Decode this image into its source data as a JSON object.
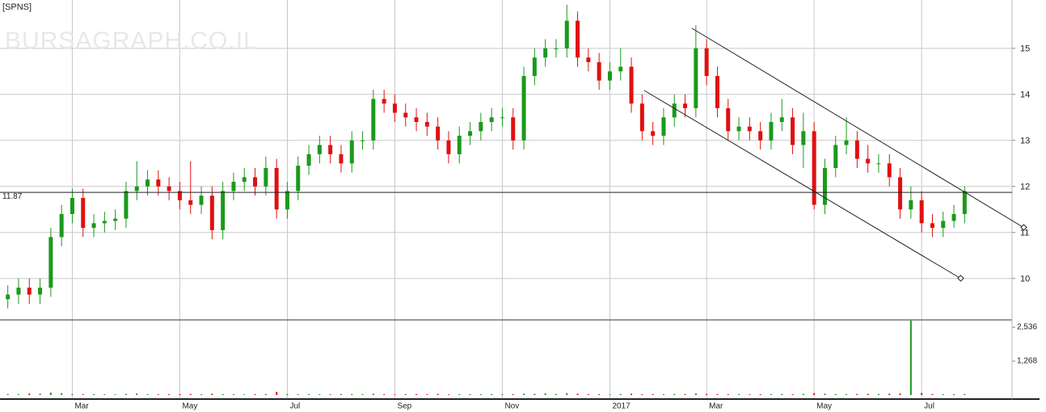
{
  "chart_data": {
    "type": "candlestick",
    "title": "[SPNS]",
    "watermark": "BURSAGRAPH.CO.IL",
    "categories": [
      null,
      null,
      null,
      null,
      null,
      null,
      "Mar",
      null,
      null,
      null,
      null,
      null,
      null,
      null,
      null,
      null,
      "May",
      null,
      null,
      null,
      null,
      null,
      null,
      null,
      null,
      null,
      "Jul",
      null,
      null,
      null,
      null,
      null,
      null,
      null,
      null,
      null,
      "Sep",
      null,
      null,
      null,
      null,
      null,
      null,
      null,
      null,
      null,
      "Nov",
      null,
      null,
      null,
      null,
      null,
      null,
      null,
      null,
      null,
      "2017",
      null,
      null,
      null,
      null,
      null,
      null,
      null,
      null,
      "Mar",
      null,
      null,
      null,
      null,
      null,
      null,
      null,
      null,
      null,
      "May",
      null,
      null,
      null,
      null,
      null,
      null,
      null,
      null,
      null,
      "Jul",
      null,
      null,
      null,
      null
    ],
    "open": [
      9.55,
      9.65,
      9.8,
      9.65,
      9.8,
      10.9,
      11.4,
      11.75,
      11.1,
      11.2,
      11.25,
      11.3,
      11.9,
      12.0,
      12.15,
      12.0,
      11.9,
      11.7,
      11.6,
      11.8,
      11.05,
      11.9,
      12.1,
      12.2,
      12.0,
      12.4,
      11.5,
      11.9,
      12.45,
      12.7,
      12.9,
      12.7,
      12.5,
      13.0,
      13.0,
      13.9,
      13.8,
      13.6,
      13.5,
      13.4,
      13.3,
      13.0,
      12.7,
      13.1,
      13.2,
      13.4,
      13.5,
      13.5,
      13.0,
      14.4,
      14.8,
      15.0,
      15.0,
      15.6,
      14.8,
      14.7,
      14.3,
      14.5,
      14.6,
      13.8,
      13.2,
      13.1,
      13.5,
      13.8,
      13.7,
      15.0,
      14.4,
      13.7,
      13.2,
      13.3,
      13.2,
      13.0,
      13.4,
      13.5,
      12.9,
      13.2,
      11.6,
      12.4,
      12.9,
      13.0,
      12.6,
      12.5,
      12.5,
      12.2,
      11.5,
      11.7,
      11.2,
      11.1,
      11.25,
      11.4
    ],
    "high": [
      9.85,
      10.0,
      10.0,
      10.0,
      11.1,
      11.6,
      11.95,
      11.95,
      11.4,
      11.45,
      11.5,
      12.1,
      12.55,
      12.35,
      12.35,
      12.2,
      12.1,
      12.55,
      12.0,
      12.0,
      12.1,
      12.3,
      12.4,
      12.4,
      12.65,
      12.6,
      12.1,
      12.65,
      12.9,
      13.1,
      13.1,
      12.9,
      13.2,
      13.2,
      14.1,
      14.1,
      14.0,
      13.8,
      13.7,
      13.6,
      13.5,
      13.2,
      13.3,
      13.4,
      13.6,
      13.7,
      13.7,
      13.7,
      14.6,
      15.0,
      15.2,
      15.2,
      15.95,
      15.8,
      15.0,
      14.9,
      14.7,
      15.0,
      14.8,
      14.0,
      13.4,
      13.7,
      14.0,
      14.0,
      15.5,
      15.2,
      14.6,
      13.9,
      13.5,
      13.5,
      13.4,
      13.6,
      13.9,
      13.7,
      13.6,
      13.4,
      12.6,
      13.1,
      13.5,
      13.2,
      12.9,
      12.7,
      12.7,
      12.4,
      12.0,
      11.9,
      11.4,
      11.45,
      11.6,
      12.0
    ],
    "low": [
      9.35,
      9.45,
      9.45,
      9.45,
      9.6,
      10.7,
      11.2,
      10.9,
      10.9,
      11.0,
      11.05,
      11.1,
      11.7,
      11.8,
      11.8,
      11.7,
      11.5,
      11.4,
      11.4,
      10.85,
      10.85,
      11.7,
      11.9,
      11.8,
      11.8,
      11.3,
      11.3,
      11.7,
      12.25,
      12.5,
      12.5,
      12.3,
      12.3,
      12.8,
      12.8,
      13.6,
      13.4,
      13.3,
      13.2,
      13.1,
      12.8,
      12.5,
      12.5,
      12.9,
      13.0,
      13.2,
      13.3,
      12.8,
      12.8,
      14.2,
      14.6,
      14.8,
      14.8,
      14.6,
      14.5,
      14.1,
      14.1,
      14.3,
      13.6,
      13.0,
      12.9,
      12.9,
      13.3,
      13.5,
      13.5,
      14.2,
      13.5,
      13.0,
      13.0,
      13.0,
      12.8,
      12.8,
      13.2,
      12.7,
      12.4,
      11.5,
      11.4,
      12.2,
      12.7,
      12.4,
      12.3,
      12.3,
      12.0,
      11.3,
      11.3,
      11.0,
      10.9,
      10.9,
      11.1,
      11.2
    ],
    "close": [
      9.65,
      9.8,
      9.65,
      9.8,
      10.9,
      11.4,
      11.75,
      11.1,
      11.2,
      11.25,
      11.3,
      11.9,
      12.0,
      12.15,
      12.0,
      11.9,
      11.7,
      11.6,
      11.8,
      11.05,
      11.9,
      12.1,
      12.2,
      12.0,
      12.4,
      11.5,
      11.9,
      12.45,
      12.7,
      12.9,
      12.7,
      12.5,
      13.0,
      13.0,
      13.9,
      13.8,
      13.6,
      13.5,
      13.4,
      13.3,
      13.0,
      12.7,
      13.1,
      13.2,
      13.4,
      13.5,
      13.5,
      13.0,
      14.4,
      14.8,
      15.0,
      15.0,
      15.6,
      14.8,
      14.7,
      14.3,
      14.5,
      14.6,
      13.8,
      13.2,
      13.1,
      13.5,
      13.8,
      13.7,
      15.0,
      14.4,
      13.7,
      13.2,
      13.3,
      13.2,
      13.0,
      13.4,
      13.5,
      12.9,
      13.2,
      11.6,
      12.4,
      12.9,
      13.0,
      12.6,
      12.5,
      12.5,
      12.2,
      11.5,
      11.7,
      11.2,
      11.1,
      11.25,
      11.4,
      11.9
    ],
    "up_color": "#1a9a1a",
    "down_color": "#e01010",
    "ylim": [
      9.1,
      16.05
    ],
    "yticks": [
      10,
      11,
      12,
      13,
      14,
      15
    ],
    "grid": true,
    "reference_line": {
      "value": 11.87
    },
    "volume": {
      "values": [
        40,
        30,
        60,
        50,
        90,
        70,
        40,
        30,
        35,
        30,
        25,
        40,
        60,
        30,
        25,
        30,
        35,
        40,
        30,
        50,
        35,
        30,
        25,
        30,
        40,
        120,
        40,
        30,
        35,
        30,
        25,
        30,
        40,
        35,
        50,
        30,
        25,
        30,
        35,
        30,
        40,
        25,
        30,
        35,
        30,
        40,
        30,
        35,
        50,
        45,
        60,
        40,
        70,
        50,
        35,
        30,
        25,
        40,
        50,
        30,
        35,
        30,
        40,
        35,
        60,
        40,
        35,
        30,
        30,
        25,
        30,
        35,
        40,
        30,
        45,
        70,
        50,
        40,
        35,
        40,
        45,
        40,
        50,
        60,
        2780,
        80,
        40,
        30,
        35,
        40
      ],
      "ylim": [
        -150,
        2808
      ],
      "yticks": [
        {
          "value": 2536,
          "label": "2,536"
        },
        {
          "value": 1268,
          "label": "1,268"
        }
      ]
    }
  }
}
